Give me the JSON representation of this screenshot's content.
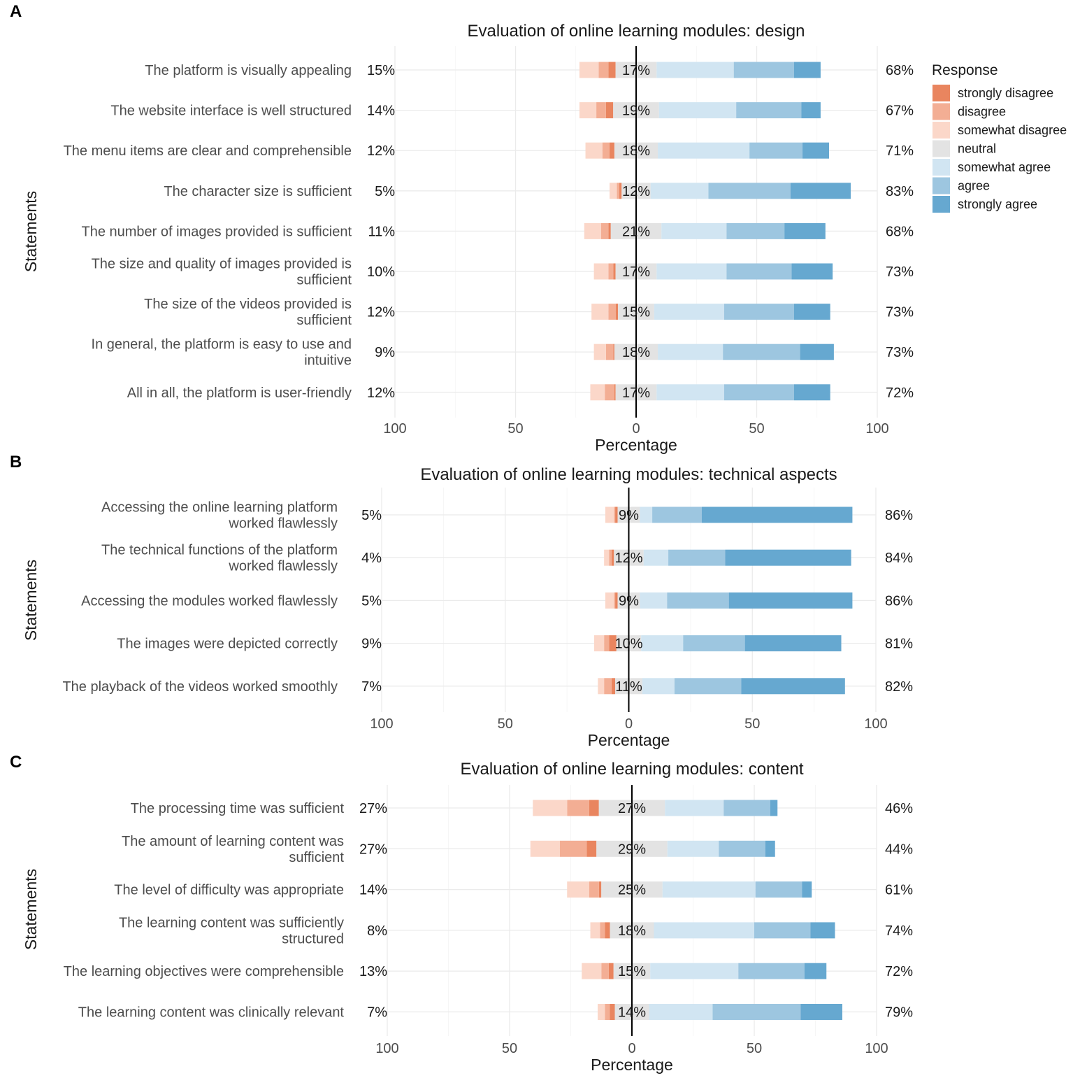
{
  "chart_data": [
    {
      "panel_letter": "A",
      "type": "bar",
      "orientation": "horizontal-diverging",
      "title": "Evaluation of online learning modules: design",
      "xlabel": "Percentage",
      "ylabel": "Statements",
      "xlim": [
        -100,
        100
      ],
      "xticks": [
        "100",
        "50",
        "0",
        "50",
        "100"
      ],
      "grid": true,
      "categories": [
        "The platform is visually appealing",
        "The website interface is well structured",
        "The menu items are clear and comprehensible",
        "The character size is sufficient",
        "The number of images provided is sufficient",
        "The size and quality of images provided is sufficient",
        "The size of the videos provided is sufficient",
        "In general, the platform is easy to use and intuitive",
        "All in all, the platform is user-friendly"
      ],
      "category_lines": [
        [
          "The platform is visually appealing"
        ],
        [
          "The website interface is well structured"
        ],
        [
          "The menu items are clear and comprehensible"
        ],
        [
          "The character size is sufficient"
        ],
        [
          "The number of images provided is sufficient"
        ],
        [
          "The size and quality of images provided is",
          "sufficient"
        ],
        [
          "The size of the videos provided is",
          "sufficient"
        ],
        [
          "In general, the platform is easy to use and",
          "intuitive"
        ],
        [
          "All in all, the platform is user-friendly"
        ]
      ],
      "left_labels": [
        "15%",
        "14%",
        "12%",
        "5%",
        "11%",
        "10%",
        "12%",
        "9%",
        "12%"
      ],
      "center_labels": [
        "17%",
        "19%",
        "18%",
        "12%",
        "21%",
        "17%",
        "15%",
        "18%",
        "17%"
      ],
      "right_labels": [
        "68%",
        "67%",
        "71%",
        "83%",
        "68%",
        "73%",
        "73%",
        "73%",
        "72%"
      ],
      "series": [
        {
          "name": "strongly disagree",
          "values": [
            3,
            3,
            2,
            1,
            1,
            1,
            1,
            0.5,
            0.5
          ]
        },
        {
          "name": "disagree",
          "values": [
            4,
            4,
            3,
            1,
            3,
            2,
            3,
            3,
            4
          ]
        },
        {
          "name": "somewhat disagree",
          "values": [
            8,
            7,
            7,
            3,
            7,
            6,
            7,
            5,
            6
          ]
        },
        {
          "name": "neutral",
          "values": [
            17,
            19,
            18,
            12,
            21,
            17,
            15,
            18,
            17
          ]
        },
        {
          "name": "somewhat agree",
          "values": [
            32,
            32,
            38,
            24,
            27,
            29,
            29,
            27,
            28
          ]
        },
        {
          "name": "agree",
          "values": [
            25,
            27,
            22,
            34,
            24,
            27,
            29,
            32,
            29
          ]
        },
        {
          "name": "strongly agree",
          "values": [
            11,
            8,
            11,
            25,
            17,
            17,
            15,
            14,
            15
          ]
        }
      ]
    },
    {
      "panel_letter": "B",
      "type": "bar",
      "orientation": "horizontal-diverging",
      "title": "Evaluation of online learning modules: technical aspects",
      "xlabel": "Percentage",
      "ylabel": "Statements",
      "xlim": [
        -100,
        100
      ],
      "xticks": [
        "100",
        "50",
        "0",
        "50",
        "100"
      ],
      "grid": true,
      "categories": [
        "Accessing the online learning platform worked flawlessly",
        "The technical functions of the platform worked flawlessly",
        "Accessing the modules worked flawlessly",
        "The images were depicted correctly",
        "The playback of the videos worked smoothly"
      ],
      "category_lines": [
        [
          "Accessing the online learning platform",
          "worked flawlessly"
        ],
        [
          "The technical functions of the platform",
          "worked flawlessly"
        ],
        [
          "Accessing the modules worked flawlessly"
        ],
        [
          "The images were depicted correctly"
        ],
        [
          "The playback of the videos worked smoothly"
        ]
      ],
      "left_labels": [
        "5%",
        "4%",
        "5%",
        "9%",
        "7%"
      ],
      "center_labels": [
        "9%",
        "12%",
        "9%",
        "10%",
        "11%"
      ],
      "right_labels": [
        "86%",
        "84%",
        "86%",
        "81%",
        "82%"
      ],
      "series": [
        {
          "name": "strongly disagree",
          "values": [
            1,
            1,
            1,
            3,
            1.5
          ]
        },
        {
          "name": "disagree",
          "values": [
            0.5,
            1,
            0.5,
            2,
            3
          ]
        },
        {
          "name": "somewhat disagree",
          "values": [
            3.5,
            2,
            3.5,
            4,
            2.5
          ]
        },
        {
          "name": "neutral",
          "values": [
            9,
            12,
            9,
            10,
            11
          ]
        },
        {
          "name": "somewhat agree",
          "values": [
            5,
            10,
            11,
            17,
            13
          ]
        },
        {
          "name": "agree",
          "values": [
            20,
            23,
            25,
            25,
            27
          ]
        },
        {
          "name": "strongly agree",
          "values": [
            61,
            51,
            50,
            39,
            42
          ]
        }
      ]
    },
    {
      "panel_letter": "C",
      "type": "bar",
      "orientation": "horizontal-diverging",
      "title": "Evaluation of online learning modules: content",
      "xlabel": "Percentage",
      "ylabel": "Statements",
      "xlim": [
        -100,
        100
      ],
      "xticks": [
        "100",
        "50",
        "0",
        "50",
        "100"
      ],
      "grid": true,
      "categories": [
        "The processing time was sufficient",
        "The amount of learning content was sufficient",
        "The level of difficulty was appropriate",
        "The learning content was sufficiently structured",
        "The learning objectives were comprehensible",
        "The learning content was clinically relevant"
      ],
      "category_lines": [
        [
          "The processing time was sufficient"
        ],
        [
          "The amount of learning content was",
          "sufficient"
        ],
        [
          "The level of difficulty was appropriate"
        ],
        [
          "The learning content was sufficiently",
          "structured"
        ],
        [
          "The learning objectives were comprehensible"
        ],
        [
          "The learning content was clinically relevant"
        ]
      ],
      "left_labels": [
        "27%",
        "27%",
        "14%",
        "8%",
        "13%",
        "7%"
      ],
      "center_labels": [
        "27%",
        "29%",
        "25%",
        "18%",
        "15%",
        "14%"
      ],
      "right_labels": [
        "46%",
        "44%",
        "61%",
        "74%",
        "72%",
        "79%"
      ],
      "series": [
        {
          "name": "strongly disagree",
          "values": [
            4,
            4,
            1,
            2,
            2,
            2
          ]
        },
        {
          "name": "disagree",
          "values": [
            9,
            11,
            4,
            2,
            3,
            2
          ]
        },
        {
          "name": "somewhat disagree",
          "values": [
            14,
            12,
            9,
            4,
            8,
            3
          ]
        },
        {
          "name": "neutral",
          "values": [
            27,
            29,
            25,
            18,
            15,
            14
          ]
        },
        {
          "name": "somewhat agree",
          "values": [
            24,
            21,
            38,
            41,
            36,
            26
          ]
        },
        {
          "name": "agree",
          "values": [
            19,
            19,
            19,
            23,
            27,
            36
          ]
        },
        {
          "name": "strongly agree",
          "values": [
            3,
            4,
            4,
            10,
            9,
            17
          ]
        }
      ]
    }
  ],
  "legend": {
    "title": "Response",
    "items": [
      {
        "label": "strongly disagree",
        "color": "#e9855f"
      },
      {
        "label": "disagree",
        "color": "#f3ae94"
      },
      {
        "label": "somewhat disagree",
        "color": "#fbd7c9"
      },
      {
        "label": "neutral",
        "color": "#e3e3e3"
      },
      {
        "label": "somewhat agree",
        "color": "#d1e5f2"
      },
      {
        "label": "agree",
        "color": "#9dc6e0"
      },
      {
        "label": "strongly agree",
        "color": "#66a8d0"
      }
    ]
  }
}
